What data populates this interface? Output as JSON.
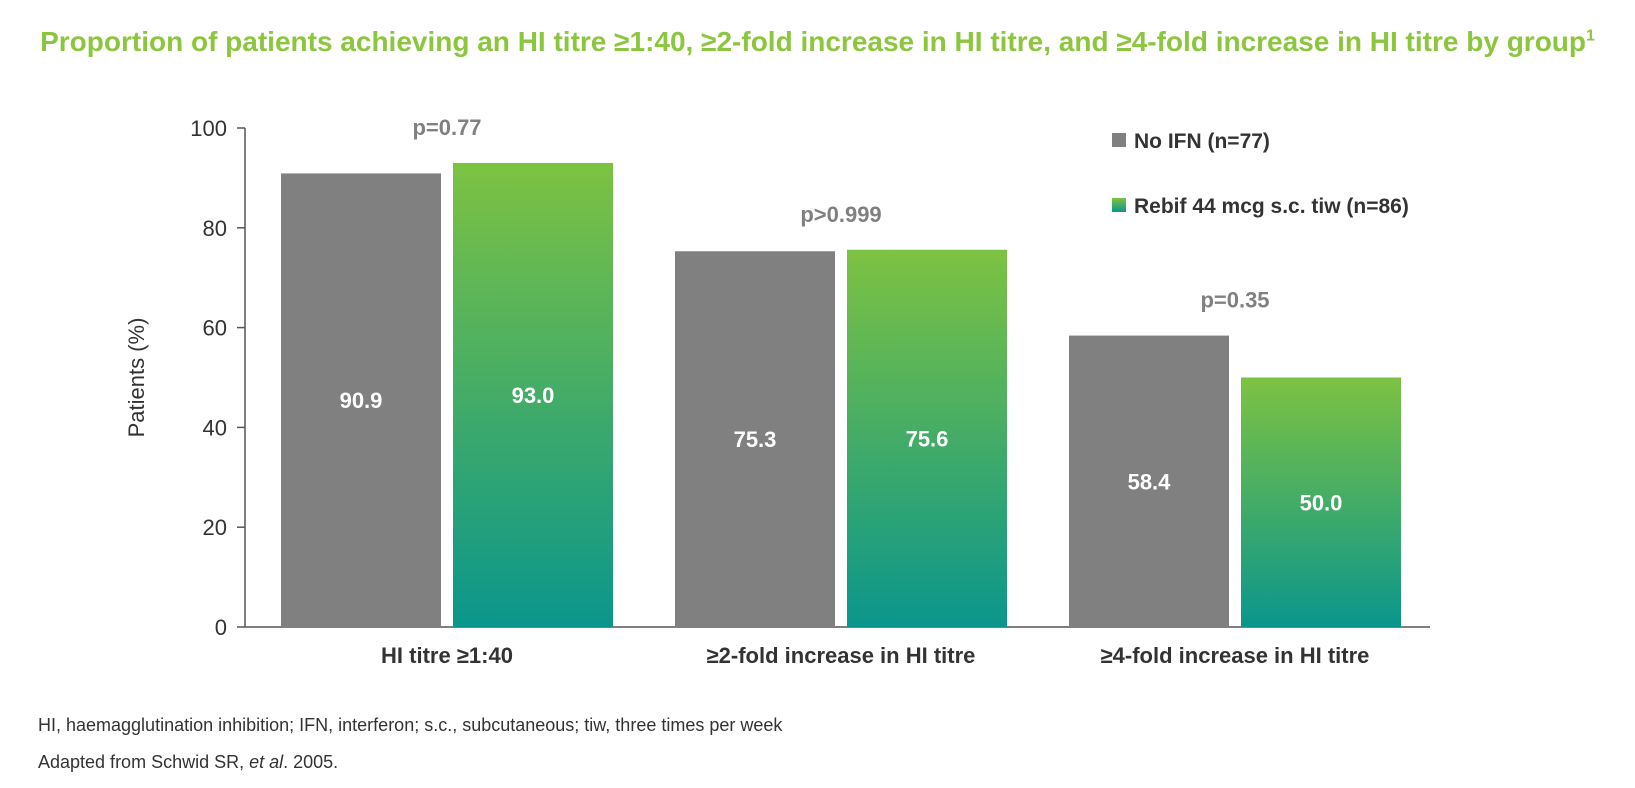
{
  "title": "Proportion of patients achieving an HI titre ≥1:40, ≥2-fold increase in HI titre, and ≥4-fold increase in HI titre by group",
  "title_superscript": "1",
  "chart_data": {
    "type": "bar",
    "categories": [
      "HI titre ≥1:40",
      "≥2-fold increase in HI titre",
      "≥4-fold increase in HI titre"
    ],
    "series": [
      {
        "name": "No IFN (n=77)",
        "values": [
          90.9,
          75.3,
          58.4
        ],
        "labels": [
          "90.9",
          "75.3",
          "58.4"
        ],
        "color": "#808080"
      },
      {
        "name": "Rebif 44 mcg s.c. tiw (n=86)",
        "values": [
          93.0,
          75.6,
          50.0
        ],
        "labels": [
          "93.0",
          "75.6",
          "50.0"
        ],
        "color_top": "#7dc242",
        "color_bottom": "#0a968c"
      }
    ],
    "p_values": [
      "p=0.77",
      "p>0.999",
      "p=0.35"
    ],
    "ylabel": "Patients (%)",
    "xlabel": "",
    "ylim": [
      0,
      100
    ],
    "yticks": [
      0,
      20,
      40,
      60,
      80,
      100
    ],
    "legend_position": "top-right",
    "grid": false
  },
  "footnotes": {
    "abbreviations": "HI, haemagglutination inhibition; IFN, interferon; s.c., subcutaneous; tiw, three times per week",
    "source_prefix": "Adapted from Schwid SR, ",
    "source_italic": "et al",
    "source_suffix": ". 2005."
  },
  "colors": {
    "title": "#8cc63f",
    "axis": "#555555",
    "tick_text": "#333333",
    "p_value_text": "#808080",
    "bar_label_text": "#ffffff"
  }
}
